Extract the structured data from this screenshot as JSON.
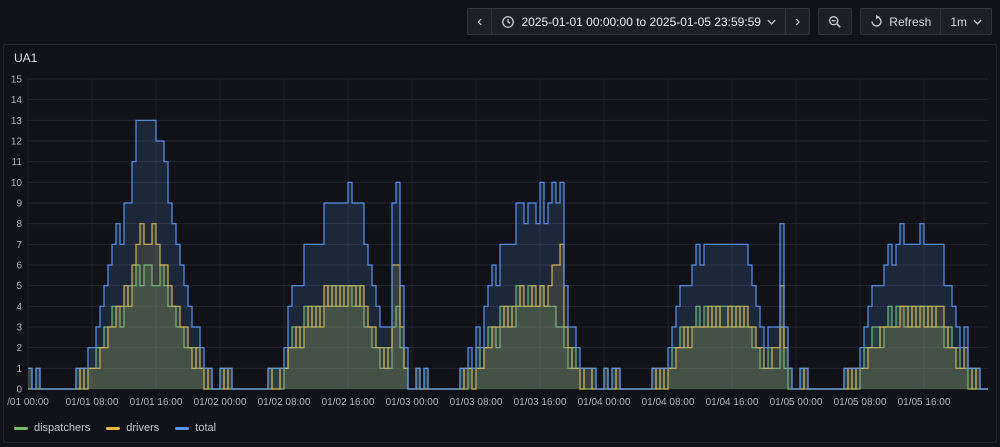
{
  "toolbar": {
    "back_glyph": "‹",
    "forward_glyph": "›",
    "time_range_label": "2025-01-01 00:00:00 to 2025-01-05 23:59:59",
    "refresh_label": "Refresh",
    "refresh_interval": "1m"
  },
  "panel": {
    "title": "UA1"
  },
  "chart_data": {
    "type": "line",
    "interpolation": "step-after",
    "title": "UA1",
    "x_start": "2025-01-01 00:00:00",
    "x_end": "2025-01-05 23:59:59",
    "x_total_hours": 120,
    "sample_interval_hours": 0.5,
    "ylim": [
      0,
      15
    ],
    "ytick_step": 1,
    "grid": true,
    "fill_opacity": 0.16,
    "background_color": "#111217",
    "grid_color": "#23262C",
    "axis_text_color": "#AFB2B8",
    "legend_position": "bottom-left",
    "xtick_hours": [
      0,
      8,
      16,
      24,
      32,
      40,
      48,
      56,
      64,
      72,
      80,
      88,
      96,
      104,
      112
    ],
    "xtick_labels": [
      "/01 00:00",
      "01/01 08:00",
      "01/01 16:00",
      "01/02 00:00",
      "01/02 08:00",
      "01/02 16:00",
      "01/03 00:00",
      "01/03 08:00",
      "01/03 16:00",
      "01/04 00:00",
      "01/04 08:00",
      "01/04 16:00",
      "01/05 00:00",
      "01/05 08:00",
      "01/05 16:00"
    ],
    "series": [
      {
        "name": "dispatchers",
        "color": "#73BF69",
        "values": [
          0,
          0,
          1,
          0,
          0,
          0,
          0,
          0,
          0,
          0,
          0,
          0,
          1,
          0,
          1,
          1,
          1,
          2,
          2,
          3,
          3,
          4,
          4,
          3,
          4,
          5,
          5,
          6,
          5,
          6,
          6,
          5,
          5,
          6,
          5,
          4,
          4,
          3,
          3,
          2,
          2,
          2,
          1,
          1,
          1,
          0,
          0,
          0,
          0,
          1,
          0,
          0,
          0,
          0,
          0,
          0,
          0,
          0,
          0,
          0,
          0,
          1,
          1,
          0,
          1,
          2,
          3,
          2,
          3,
          4,
          3,
          4,
          3,
          4,
          4,
          5,
          4,
          5,
          4,
          5,
          5,
          4,
          5,
          4,
          3,
          3,
          2,
          2,
          1,
          2,
          1,
          3,
          4,
          2,
          1,
          0,
          0,
          0,
          0,
          1,
          0,
          0,
          0,
          0,
          0,
          0,
          0,
          0,
          1,
          0,
          1,
          1,
          2,
          1,
          2,
          3,
          3,
          2,
          4,
          3,
          4,
          3,
          5,
          4,
          4,
          5,
          4,
          4,
          5,
          4,
          4,
          4,
          3,
          3,
          2,
          1,
          2,
          1,
          1,
          0,
          0,
          1,
          0,
          0,
          0,
          0,
          1,
          0,
          0,
          0,
          0,
          0,
          0,
          0,
          0,
          0,
          0,
          1,
          0,
          1,
          1,
          2,
          2,
          3,
          2,
          3,
          3,
          4,
          3,
          4,
          3,
          4,
          3,
          4,
          4,
          3,
          4,
          3,
          4,
          3,
          3,
          2,
          2,
          1,
          1,
          2,
          1,
          1,
          3,
          1,
          0,
          0,
          0,
          1,
          0,
          0,
          0,
          0,
          0,
          0,
          0,
          0,
          0,
          0,
          1,
          0,
          1,
          0,
          1,
          2,
          2,
          3,
          3,
          2,
          3,
          4,
          3,
          4,
          4,
          3,
          4,
          3,
          4,
          4,
          4,
          3,
          4,
          3,
          3,
          2,
          3,
          2,
          2,
          1,
          1,
          0,
          1,
          0,
          0,
          0
        ]
      },
      {
        "name": "drivers",
        "color": "#EAB839",
        "values": [
          1,
          0,
          0,
          0,
          0,
          0,
          0,
          0,
          0,
          0,
          0,
          0,
          0,
          1,
          0,
          1,
          1,
          1,
          2,
          2,
          3,
          3,
          4,
          4,
          5,
          4,
          6,
          7,
          8,
          7,
          7,
          8,
          7,
          6,
          6,
          5,
          4,
          4,
          3,
          3,
          2,
          1,
          2,
          1,
          0,
          1,
          0,
          0,
          1,
          0,
          1,
          0,
          0,
          0,
          0,
          0,
          0,
          0,
          0,
          0,
          1,
          0,
          0,
          1,
          1,
          2,
          2,
          3,
          2,
          3,
          4,
          3,
          4,
          3,
          5,
          4,
          5,
          4,
          5,
          4,
          5,
          5,
          4,
          5,
          4,
          3,
          3,
          2,
          2,
          1,
          2,
          6,
          6,
          3,
          1,
          0,
          0,
          1,
          0,
          0,
          0,
          0,
          0,
          0,
          0,
          0,
          0,
          0,
          0,
          1,
          1,
          0,
          1,
          1,
          2,
          2,
          3,
          3,
          3,
          4,
          3,
          4,
          4,
          5,
          4,
          4,
          5,
          4,
          5,
          4,
          5,
          6,
          6,
          7,
          3,
          2,
          1,
          1,
          0,
          1,
          1,
          0,
          0,
          0,
          1,
          0,
          0,
          1,
          0,
          0,
          0,
          0,
          0,
          0,
          0,
          0,
          1,
          0,
          1,
          0,
          1,
          1,
          2,
          2,
          3,
          2,
          3,
          3,
          3,
          3,
          4,
          3,
          4,
          3,
          3,
          4,
          3,
          4,
          3,
          4,
          3,
          3,
          2,
          2,
          1,
          1,
          2,
          2,
          5,
          2,
          1,
          0,
          0,
          0,
          1,
          0,
          0,
          0,
          0,
          0,
          0,
          0,
          0,
          0,
          0,
          1,
          0,
          1,
          1,
          1,
          2,
          2,
          2,
          3,
          3,
          3,
          3,
          3,
          4,
          4,
          3,
          4,
          3,
          4,
          3,
          4,
          3,
          4,
          4,
          3,
          2,
          2,
          1,
          1,
          2,
          1,
          0,
          1,
          0,
          0
        ]
      },
      {
        "name": "total",
        "color": "#5794F2",
        "values": [
          1,
          0,
          1,
          0,
          0,
          0,
          0,
          0,
          0,
          0,
          0,
          0,
          1,
          1,
          1,
          2,
          2,
          3,
          4,
          5,
          6,
          7,
          8,
          7,
          9,
          9,
          11,
          13,
          13,
          13,
          13,
          13,
          12,
          12,
          11,
          9,
          8,
          7,
          6,
          5,
          4,
          3,
          3,
          2,
          1,
          1,
          0,
          0,
          1,
          1,
          1,
          0,
          0,
          0,
          0,
          0,
          0,
          0,
          0,
          0,
          1,
          1,
          1,
          1,
          2,
          4,
          5,
          5,
          5,
          7,
          7,
          7,
          7,
          7,
          9,
          9,
          9,
          9,
          9,
          9,
          10,
          9,
          9,
          9,
          7,
          6,
          5,
          4,
          3,
          3,
          3,
          9,
          10,
          5,
          2,
          0,
          0,
          1,
          0,
          1,
          0,
          0,
          0,
          0,
          0,
          0,
          0,
          0,
          1,
          1,
          2,
          1,
          3,
          2,
          4,
          5,
          6,
          5,
          7,
          7,
          7,
          7,
          9,
          9,
          8,
          9,
          9,
          8,
          10,
          8,
          9,
          10,
          9,
          10,
          5,
          3,
          3,
          2,
          1,
          1,
          1,
          1,
          0,
          0,
          1,
          0,
          1,
          1,
          0,
          0,
          0,
          0,
          0,
          0,
          0,
          0,
          1,
          1,
          1,
          1,
          2,
          3,
          4,
          5,
          5,
          5,
          6,
          7,
          6,
          7,
          7,
          7,
          7,
          7,
          7,
          7,
          7,
          7,
          7,
          7,
          6,
          5,
          4,
          3,
          2,
          3,
          3,
          3,
          8,
          3,
          1,
          0,
          0,
          1,
          1,
          0,
          0,
          0,
          0,
          0,
          0,
          0,
          0,
          0,
          1,
          1,
          1,
          1,
          2,
          3,
          4,
          5,
          5,
          5,
          6,
          7,
          6,
          7,
          8,
          7,
          7,
          7,
          7,
          8,
          7,
          7,
          7,
          7,
          7,
          5,
          5,
          4,
          3,
          2,
          3,
          1,
          1,
          1,
          0,
          0
        ]
      }
    ]
  }
}
